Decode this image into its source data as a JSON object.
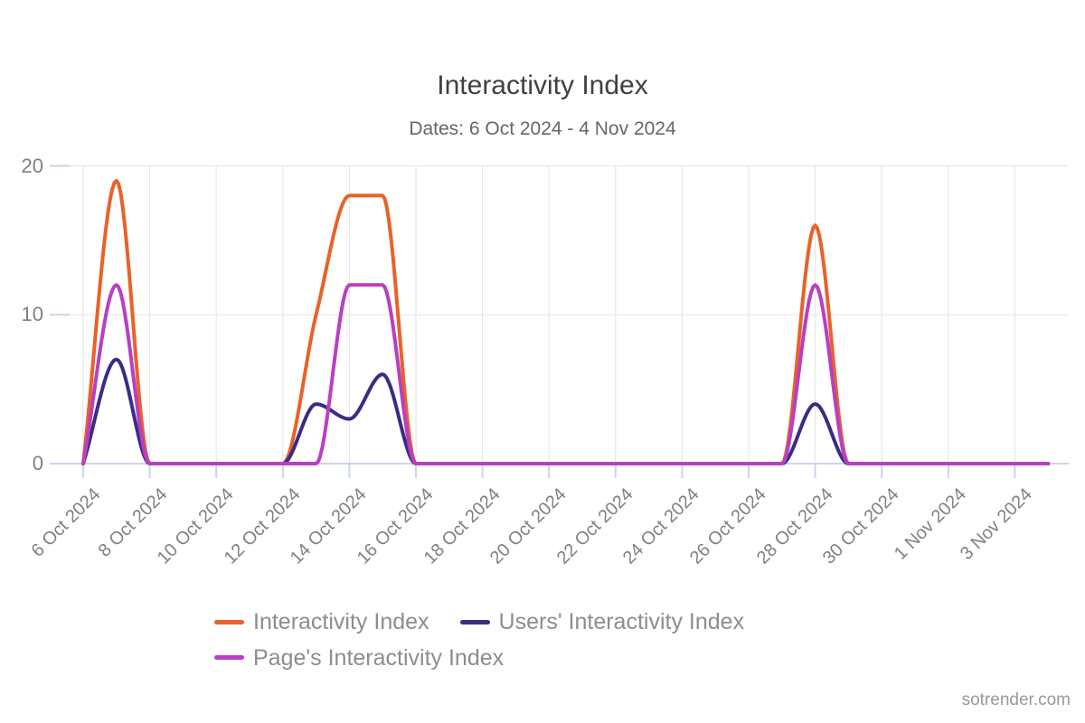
{
  "title": "Interactivity Index",
  "subtitle": "Dates: 6 Oct 2024 - 4 Nov 2024",
  "watermark": "sotrender.com",
  "colors": {
    "series_orange": "#E8622A",
    "series_navy": "#3B2C85",
    "series_magenta": "#B83FC2",
    "gridline": "#E3E3E3",
    "axis_line": "#C9D4EE",
    "title_text": "#404040",
    "subtitle_text": "#666666",
    "axis_label_text": "#808080",
    "legend_text": "#8D8D8D",
    "watermark_text": "#999999"
  },
  "chart_data": {
    "type": "line",
    "title": "Interactivity Index",
    "subtitle": "Dates: 6 Oct 2024 - 4 Nov 2024",
    "x": [
      "6 Oct 2024",
      "7 Oct 2024",
      "8 Oct 2024",
      "9 Oct 2024",
      "10 Oct 2024",
      "11 Oct 2024",
      "12 Oct 2024",
      "13 Oct 2024",
      "14 Oct 2024",
      "15 Oct 2024",
      "16 Oct 2024",
      "17 Oct 2024",
      "18 Oct 2024",
      "19 Oct 2024",
      "20 Oct 2024",
      "21 Oct 2024",
      "22 Oct 2024",
      "23 Oct 2024",
      "24 Oct 2024",
      "25 Oct 2024",
      "26 Oct 2024",
      "27 Oct 2024",
      "28 Oct 2024",
      "29 Oct 2024",
      "30 Oct 2024",
      "31 Oct 2024",
      "1 Nov 2024",
      "2 Nov 2024",
      "3 Nov 2024",
      "4 Nov 2024"
    ],
    "x_tick_labels": [
      "6 Oct 2024",
      "8 Oct 2024",
      "10 Oct 2024",
      "12 Oct 2024",
      "14 Oct 2024",
      "16 Oct 2024",
      "18 Oct 2024",
      "20 Oct 2024",
      "22 Oct 2024",
      "24 Oct 2024",
      "26 Oct 2024",
      "28 Oct 2024",
      "30 Oct 2024",
      "1 Nov 2024",
      "3 Nov 2024"
    ],
    "y_ticks": [
      0,
      10,
      20
    ],
    "ylim": [
      0,
      20
    ],
    "grid": true,
    "legend_position": "bottom",
    "series": [
      {
        "name": "Interactivity Index",
        "color": "#E8622A",
        "values": [
          0,
          19,
          0,
          0,
          0,
          0,
          0,
          10,
          18,
          18,
          0,
          0,
          0,
          0,
          0,
          0,
          0,
          0,
          0,
          0,
          0,
          0,
          16,
          0,
          0,
          0,
          0,
          0,
          0,
          0
        ]
      },
      {
        "name": "Users' Interactivity Index",
        "color": "#3B2C85",
        "values": [
          0,
          7,
          0,
          0,
          0,
          0,
          0,
          4,
          3,
          6,
          0,
          0,
          0,
          0,
          0,
          0,
          0,
          0,
          0,
          0,
          0,
          0,
          4,
          0,
          0,
          0,
          0,
          0,
          0,
          0
        ]
      },
      {
        "name": "Page's Interactivity Index",
        "color": "#B83FC2",
        "values": [
          0,
          12,
          0,
          0,
          0,
          0,
          0,
          0,
          12,
          12,
          0,
          0,
          0,
          0,
          0,
          0,
          0,
          0,
          0,
          0,
          0,
          0,
          12,
          0,
          0,
          0,
          0,
          0,
          0,
          0
        ]
      }
    ]
  }
}
